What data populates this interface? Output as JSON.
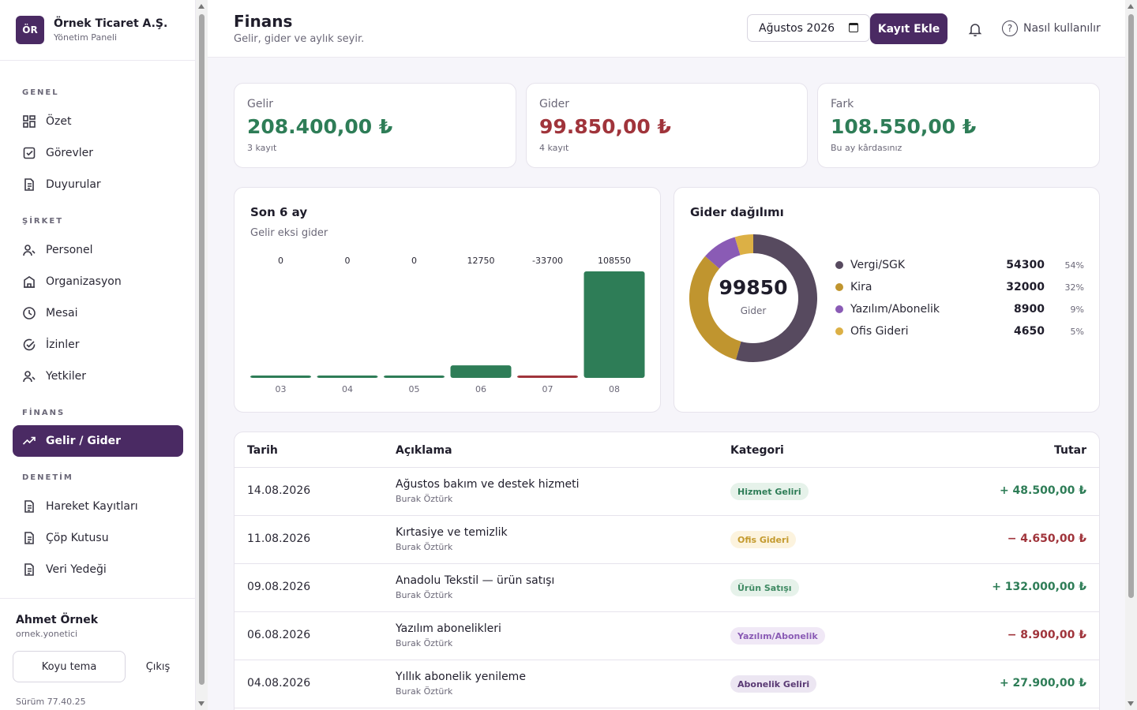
{
  "brand": {
    "logo": "ÖR",
    "name": "Örnek Ticaret A.Ş.",
    "subtitle": "Yönetim Paneli"
  },
  "sidebar": {
    "sections": {
      "genel": "GENEL",
      "sirket": "ŞİRKET",
      "finans": "FİNANS",
      "denetim": "DENETİM"
    },
    "items": [
      {
        "label": "Özet",
        "icon": "grid-icon"
      },
      {
        "label": "Görevler",
        "icon": "checkbox-icon"
      },
      {
        "label": "Duyurular",
        "icon": "document-icon"
      },
      {
        "label": "Personel",
        "icon": "user-icon"
      },
      {
        "label": "Organizasyon",
        "icon": "building-icon"
      },
      {
        "label": "Mesai",
        "icon": "clock-icon"
      },
      {
        "label": "İzinler",
        "icon": "check-circle-icon"
      },
      {
        "label": "Yetkiler",
        "icon": "user-icon"
      },
      {
        "label": "Gelir / Gider",
        "icon": "trend-icon"
      },
      {
        "label": "Hareket Kayıtları",
        "icon": "document-icon"
      },
      {
        "label": "Çöp Kutusu",
        "icon": "document-icon"
      },
      {
        "label": "Veri Yedeği",
        "icon": "document-icon"
      }
    ]
  },
  "user": {
    "name": "Ahmet Örnek",
    "handle": "ornek.yonetici",
    "theme_label": "Koyu tema",
    "logout_label": "Çıkış",
    "version": "Sürüm 77.40.25"
  },
  "header": {
    "title": "Finans",
    "subtitle": "Gelir, gider ve aylık seyir.",
    "month": "Ağustos 2026",
    "add_label": "Kayıt Ekle",
    "help_label": "Nasıl kullanılır"
  },
  "stats": [
    {
      "label": "Gelir",
      "value": "208.400,00 ₺",
      "note": "3 kayıt"
    },
    {
      "label": "Gider",
      "value": "99.850,00 ₺",
      "note": "4 kayıt"
    },
    {
      "label": "Fark",
      "value": "108.550,00 ₺",
      "note": "Bu ay kârdasınız"
    }
  ],
  "colors": {
    "accent": "#4a2a63",
    "positive": "#2e7d57",
    "negative": "#a0343b"
  },
  "chart_data": [
    {
      "type": "bar",
      "title": "Son 6 ay",
      "subtitle": "Gelir eksi gider",
      "categories": [
        "03",
        "04",
        "05",
        "06",
        "07",
        "08"
      ],
      "values": [
        0,
        0,
        0,
        12750,
        -33700,
        108550
      ],
      "grid": false
    },
    {
      "type": "pie",
      "title": "Gider dağılımı",
      "center_value": "99850",
      "center_label": "Gider",
      "labels": [
        "Vergi/SGK",
        "Kira",
        "Yazılım/Abonelik",
        "Ofis Gideri"
      ],
      "values": [
        54300,
        32000,
        8900,
        4650
      ],
      "percents": [
        "54%",
        "32%",
        "9%",
        "5%"
      ],
      "colors": [
        "#574a5f",
        "#c0952f",
        "#8a5bb5",
        "#dcb045"
      ],
      "legend": "right"
    }
  ],
  "table": {
    "headers": {
      "date": "Tarih",
      "desc": "Açıklama",
      "category": "Kategori",
      "amount": "Tutar"
    },
    "rows": [
      {
        "date": "14.08.2026",
        "desc": "Ağustos bakım ve destek hizmeti",
        "by": "Burak Öztürk",
        "category": "Hizmet Geliri",
        "amount": "+ 48.500,00 ₺"
      },
      {
        "date": "11.08.2026",
        "desc": "Kırtasiye ve temizlik",
        "by": "Burak Öztürk",
        "category": "Ofis Gideri",
        "amount": "− 4.650,00 ₺"
      },
      {
        "date": "09.08.2026",
        "desc": "Anadolu Tekstil — ürün satışı",
        "by": "Burak Öztürk",
        "category": "Ürün Satışı",
        "amount": "+ 132.000,00 ₺"
      },
      {
        "date": "06.08.2026",
        "desc": "Yazılım abonelikleri",
        "by": "Burak Öztürk",
        "category": "Yazılım/Abonelik",
        "amount": "− 8.900,00 ₺"
      },
      {
        "date": "04.08.2026",
        "desc": "Yıllık abonelik yenileme",
        "by": "Burak Öztürk",
        "category": "Abonelik Geliri",
        "amount": "+ 27.900,00 ₺"
      }
    ]
  }
}
